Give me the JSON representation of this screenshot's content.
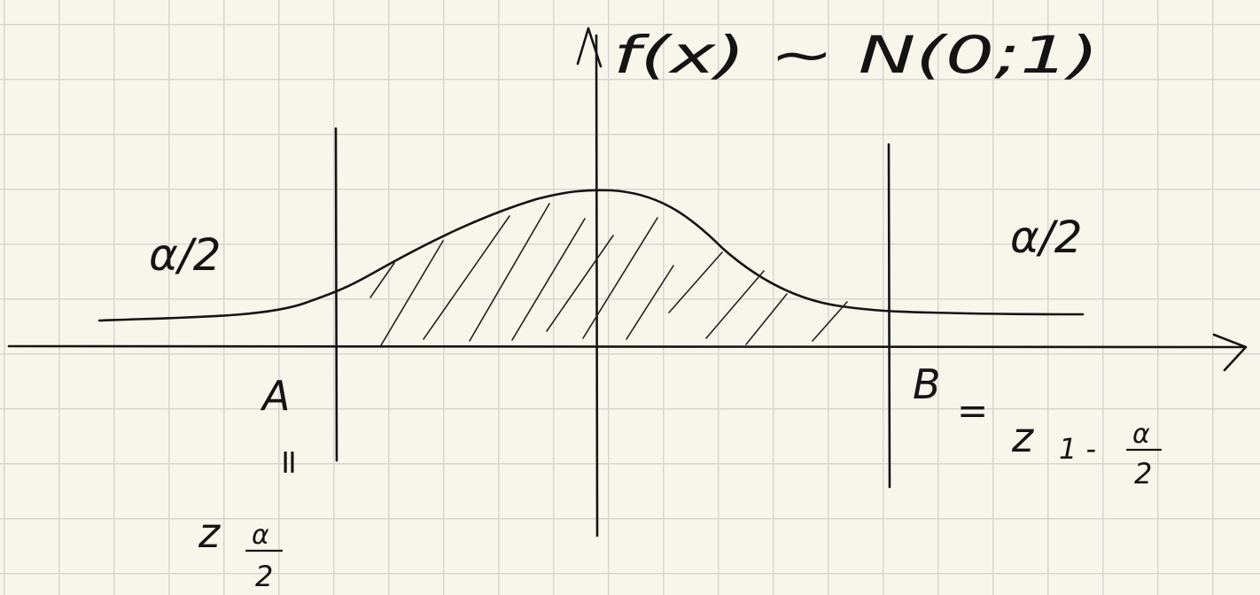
{
  "title": "f(x) ~ N(0;1)",
  "left_tail": {
    "label": "α/2"
  },
  "right_tail": {
    "label": "α/2"
  },
  "point_a": {
    "label": "A",
    "equals": "=",
    "quantile": "z",
    "subscript_numerator": "α",
    "subscript_denominator": "2"
  },
  "point_b": {
    "label": "B",
    "equals": "=",
    "quantile": "z",
    "subscript_prefix": "1 -",
    "subscript_numerator": "α",
    "subscript_denominator": "2"
  },
  "colors": {
    "ink": "#141414",
    "paper": "#f8f6eb",
    "grid": "#d6d6d2"
  }
}
